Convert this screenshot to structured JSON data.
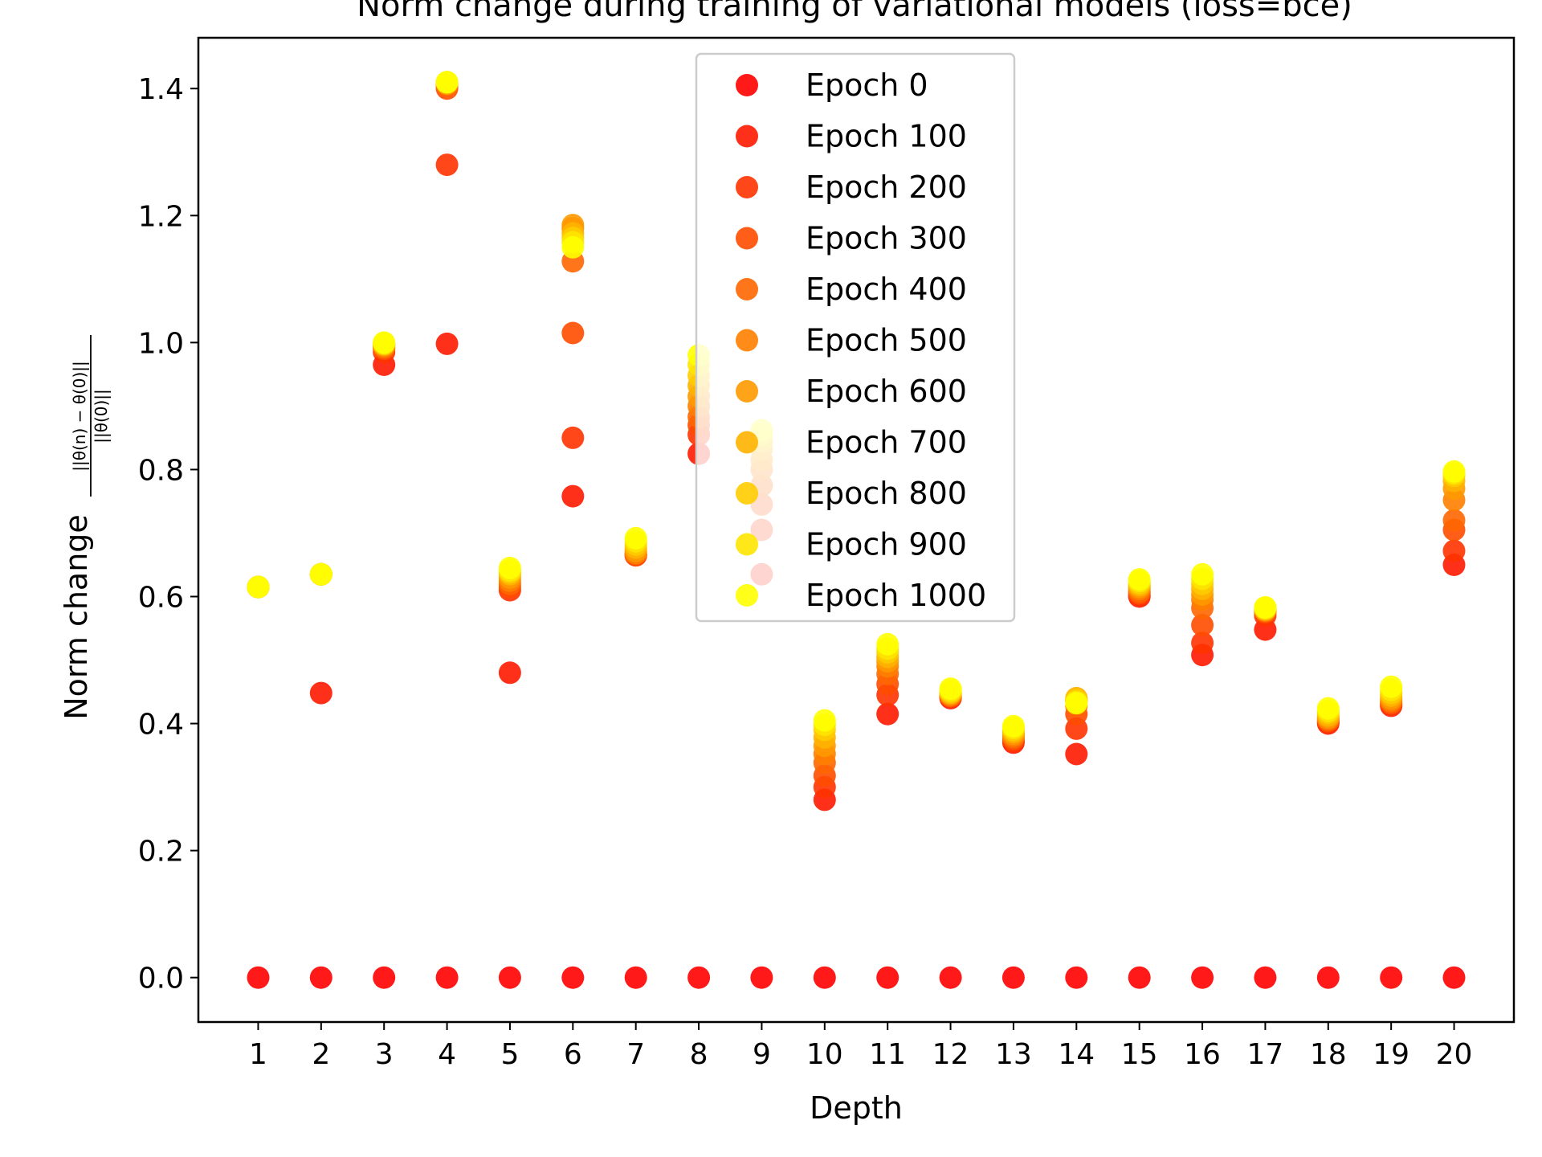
{
  "chart_data": {
    "type": "scatter",
    "title": "Norm change during training of variational models (loss=bce)",
    "xlabel": "Depth",
    "ylabel": "Norm change",
    "ylabel_fraction": {
      "numerator": "||θ(n) − θ(0)||",
      "denominator": "||θ(0)||"
    },
    "xlim": [
      0.05,
      20.95
    ],
    "ylim": [
      -0.07,
      1.48
    ],
    "x_ticks": [
      1,
      2,
      3,
      4,
      5,
      6,
      7,
      8,
      9,
      10,
      11,
      12,
      13,
      14,
      15,
      16,
      17,
      18,
      19,
      20
    ],
    "x_tick_labels": [
      "1",
      "2",
      "3",
      "4",
      "5",
      "6",
      "7",
      "8",
      "9",
      "10",
      "11",
      "12",
      "13",
      "14",
      "15",
      "16",
      "17",
      "18",
      "19",
      "20"
    ],
    "y_ticks": [
      0.0,
      0.2,
      0.4,
      0.6,
      0.8,
      1.0,
      1.2,
      1.4
    ],
    "y_tick_labels": [
      "0.0",
      "0.2",
      "0.4",
      "0.6",
      "0.8",
      "1.0",
      "1.2",
      "1.4"
    ],
    "grid": false,
    "legend_position": "top-center",
    "categories": [
      1,
      2,
      3,
      4,
      5,
      6,
      7,
      8,
      9,
      10,
      11,
      12,
      13,
      14,
      15,
      16,
      17,
      18,
      19,
      20
    ],
    "series": [
      {
        "name": "Epoch 0",
        "color": "#ff0000",
        "values": [
          0,
          0,
          0,
          0,
          0,
          0,
          0,
          0,
          0,
          0,
          0,
          0,
          0,
          0,
          0,
          0,
          0,
          0,
          0,
          0
        ]
      },
      {
        "name": "Epoch 100",
        "color": "#ff1a00",
        "values": [
          0.615,
          0.448,
          0.965,
          0.998,
          0.48,
          0.758,
          0.665,
          0.825,
          0.635,
          0.28,
          0.415,
          0.44,
          0.37,
          0.352,
          0.6,
          0.508,
          0.548,
          0.4,
          0.428,
          0.65
        ]
      },
      {
        "name": "Epoch 200",
        "color": "#ff3300",
        "values": [
          0.615,
          0.635,
          0.985,
          1.28,
          0.61,
          0.85,
          0.665,
          0.855,
          0.705,
          0.3,
          0.445,
          0.442,
          0.372,
          0.392,
          0.602,
          0.527,
          0.57,
          0.402,
          0.43,
          0.672
        ]
      },
      {
        "name": "Epoch 300",
        "color": "#ff4d00",
        "values": [
          0.615,
          0.635,
          0.99,
          1.4,
          0.615,
          1.015,
          0.665,
          0.87,
          0.745,
          0.318,
          0.462,
          0.443,
          0.375,
          0.415,
          0.605,
          0.555,
          0.575,
          0.404,
          0.432,
          0.705
        ]
      },
      {
        "name": "Epoch 400",
        "color": "#ff6600",
        "values": [
          0.615,
          0.635,
          0.992,
          1.405,
          0.62,
          1.128,
          0.667,
          0.883,
          0.775,
          0.338,
          0.478,
          0.444,
          0.378,
          0.428,
          0.608,
          0.582,
          0.577,
          0.406,
          0.434,
          0.72
        ]
      },
      {
        "name": "Epoch 500",
        "color": "#ff8000",
        "values": [
          0.615,
          0.635,
          0.994,
          1.407,
          0.625,
          1.18,
          0.669,
          0.9,
          0.8,
          0.352,
          0.49,
          0.445,
          0.381,
          0.436,
          0.612,
          0.595,
          0.578,
          0.408,
          0.437,
          0.752
        ]
      },
      {
        "name": "Epoch 600",
        "color": "#ff9900",
        "values": [
          0.615,
          0.635,
          0.996,
          1.408,
          0.63,
          1.185,
          0.672,
          0.915,
          0.815,
          0.365,
          0.498,
          0.447,
          0.384,
          0.438,
          0.615,
          0.603,
          0.579,
          0.41,
          0.44,
          0.77
        ]
      },
      {
        "name": "Epoch 700",
        "color": "#ffb300",
        "values": [
          0.615,
          0.635,
          0.997,
          1.409,
          0.635,
          1.172,
          0.677,
          0.932,
          0.832,
          0.378,
          0.505,
          0.448,
          0.387,
          0.44,
          0.618,
          0.612,
          0.58,
          0.413,
          0.444,
          0.782
        ]
      },
      {
        "name": "Epoch 800",
        "color": "#ffcc00",
        "values": [
          0.615,
          0.635,
          0.998,
          1.41,
          0.638,
          1.165,
          0.682,
          0.948,
          0.845,
          0.39,
          0.512,
          0.45,
          0.39,
          0.437,
          0.621,
          0.62,
          0.581,
          0.417,
          0.448,
          0.79
        ]
      },
      {
        "name": "Epoch 900",
        "color": "#ffe600",
        "values": [
          0.615,
          0.635,
          0.999,
          1.41,
          0.641,
          1.158,
          0.687,
          0.965,
          0.855,
          0.398,
          0.518,
          0.452,
          0.393,
          0.434,
          0.624,
          0.628,
          0.582,
          0.42,
          0.453,
          0.794
        ]
      },
      {
        "name": "Epoch 1000",
        "color": "#ffff00",
        "values": [
          0.615,
          0.635,
          1.0,
          1.41,
          0.645,
          1.15,
          0.692,
          0.98,
          0.862,
          0.405,
          0.525,
          0.455,
          0.396,
          0.432,
          0.627,
          0.635,
          0.583,
          0.424,
          0.458,
          0.797
        ]
      }
    ]
  }
}
